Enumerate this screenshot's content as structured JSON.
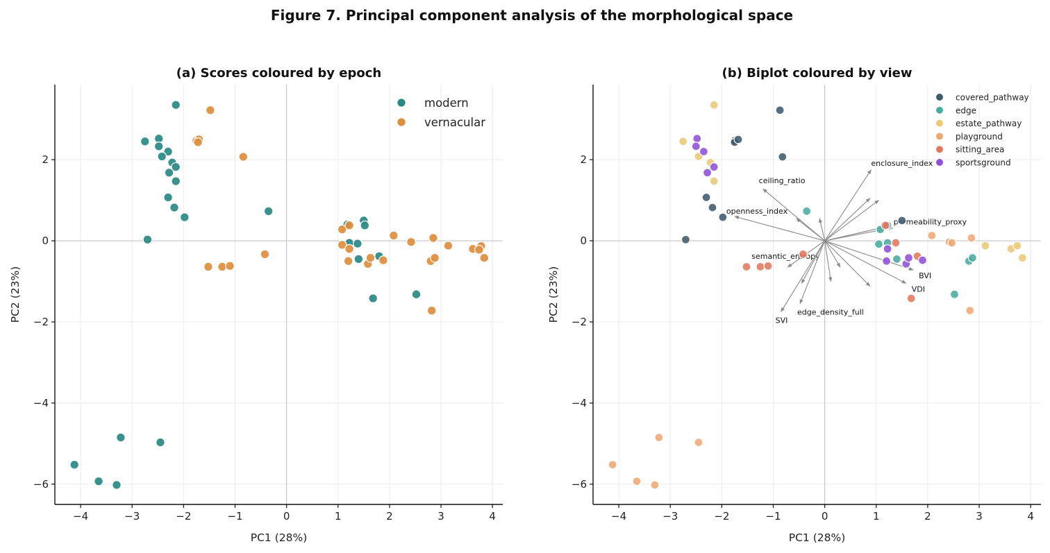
{
  "figure": {
    "title": "Figure 7. Principal component analysis of the morphological space"
  },
  "chart_data": [
    {
      "type": "scatter",
      "title": "(a) Scores coloured by epoch",
      "xlabel": "PC1 (28%)",
      "ylabel": "PC2 (23%)",
      "xlim": [
        -4.5,
        4.2
      ],
      "ylim": [
        -6.5,
        3.85
      ],
      "xticks": [
        -4,
        -3,
        -2,
        -1,
        0,
        1,
        2,
        3,
        4
      ],
      "yticks": [
        -6,
        -4,
        -2,
        0,
        2
      ],
      "grid": true,
      "legend": "top-right",
      "series": [
        {
          "name": "modern",
          "color": "#2a8a84",
          "points": [
            [
              -2.15,
              3.35
            ],
            [
              -2.75,
              2.45
            ],
            [
              -2.48,
              2.52
            ],
            [
              -2.48,
              2.33
            ],
            [
              -2.3,
              2.2
            ],
            [
              -2.42,
              2.08
            ],
            [
              -2.22,
              1.93
            ],
            [
              -2.15,
              1.82
            ],
            [
              -2.28,
              1.68
            ],
            [
              -2.15,
              1.47
            ],
            [
              -2.3,
              1.07
            ],
            [
              -2.18,
              0.82
            ],
            [
              -1.98,
              0.58
            ],
            [
              -2.7,
              0.03
            ],
            [
              -0.35,
              0.73
            ],
            [
              -4.12,
              -5.52
            ],
            [
              -3.65,
              -5.93
            ],
            [
              -3.3,
              -6.02
            ],
            [
              -3.22,
              -4.85
            ],
            [
              -2.45,
              -4.97
            ],
            [
              1.18,
              0.4
            ],
            [
              1.5,
              0.5
            ],
            [
              1.52,
              0.38
            ],
            [
              1.22,
              -0.05
            ],
            [
              1.38,
              -0.07
            ],
            [
              1.4,
              -0.45
            ],
            [
              1.8,
              -0.38
            ],
            [
              1.68,
              -1.42
            ],
            [
              2.52,
              -1.32
            ]
          ]
        },
        {
          "name": "vernacular",
          "color": "#de8f3e",
          "points": [
            [
              -1.48,
              3.22
            ],
            [
              -1.75,
              2.47
            ],
            [
              -1.7,
              2.5
            ],
            [
              -1.72,
              2.43
            ],
            [
              -0.84,
              2.07
            ],
            [
              -0.42,
              -0.33
            ],
            [
              -1.52,
              -0.64
            ],
            [
              -1.25,
              -0.64
            ],
            [
              -1.1,
              -0.62
            ],
            [
              1.08,
              0.28
            ],
            [
              1.22,
              0.38
            ],
            [
              1.08,
              -0.1
            ],
            [
              1.22,
              -0.2
            ],
            [
              1.2,
              -0.5
            ],
            [
              1.58,
              -0.57
            ],
            [
              1.63,
              -0.42
            ],
            [
              1.88,
              -0.48
            ],
            [
              2.08,
              0.13
            ],
            [
              2.42,
              -0.03
            ],
            [
              2.85,
              0.07
            ],
            [
              3.14,
              -0.12
            ],
            [
              2.8,
              -0.5
            ],
            [
              2.88,
              -0.42
            ],
            [
              2.82,
              -1.72
            ],
            [
              3.62,
              -0.2
            ],
            [
              3.78,
              -0.13
            ],
            [
              3.74,
              -0.22
            ],
            [
              3.84,
              -0.42
            ]
          ]
        }
      ]
    },
    {
      "type": "scatter",
      "title": "(b) Biplot coloured by view",
      "xlabel": "PC1 (28%)",
      "ylabel": "PC2 (23%)",
      "xlim": [
        -4.5,
        4.2
      ],
      "ylim": [
        -6.5,
        3.85
      ],
      "xticks": [
        -4,
        -3,
        -2,
        -1,
        0,
        1,
        2,
        3,
        4
      ],
      "yticks": [
        -6,
        -4,
        -2,
        0,
        2
      ],
      "grid": true,
      "legend": "top-right",
      "series": [
        {
          "name": "covered_pathway",
          "color": "#3f5a6b",
          "points": [
            [
              -0.87,
              3.22
            ],
            [
              -1.75,
              2.47
            ],
            [
              -1.75,
              2.43
            ],
            [
              -1.68,
              2.5
            ],
            [
              -0.82,
              2.07
            ],
            [
              -2.3,
              1.07
            ],
            [
              -2.18,
              0.82
            ],
            [
              -1.98,
              0.58
            ],
            [
              -2.7,
              0.03
            ],
            [
              1.5,
              0.5
            ]
          ]
        },
        {
          "name": "edge",
          "color": "#4aab9e",
          "points": [
            [
              -0.35,
              0.73
            ],
            [
              1.22,
              0.38
            ],
            [
              1.08,
              0.28
            ],
            [
              1.22,
              -0.05
            ],
            [
              1.05,
              -0.08
            ],
            [
              1.4,
              -0.45
            ],
            [
              2.8,
              -0.5
            ],
            [
              2.87,
              -0.42
            ],
            [
              2.52,
              -1.32
            ]
          ]
        },
        {
          "name": "estate_pathway",
          "color": "#ecc878",
          "points": [
            [
              -2.15,
              3.35
            ],
            [
              -2.75,
              2.45
            ],
            [
              -2.45,
              2.08
            ],
            [
              -2.22,
              1.93
            ],
            [
              -2.15,
              1.47
            ],
            [
              3.12,
              -0.12
            ],
            [
              3.62,
              -0.2
            ],
            [
              3.74,
              -0.12
            ],
            [
              3.84,
              -0.42
            ]
          ]
        },
        {
          "name": "playground",
          "color": "#efa874",
          "points": [
            [
              -4.12,
              -5.52
            ],
            [
              -3.65,
              -5.93
            ],
            [
              -3.3,
              -6.02
            ],
            [
              -3.22,
              -4.85
            ],
            [
              -2.45,
              -4.97
            ],
            [
              2.08,
              0.13
            ],
            [
              2.42,
              -0.03
            ],
            [
              2.47,
              -0.05
            ],
            [
              2.85,
              0.07
            ],
            [
              2.82,
              -1.72
            ]
          ]
        },
        {
          "name": "sitting_area",
          "color": "#e2775f",
          "points": [
            [
              -1.52,
              -0.64
            ],
            [
              -1.25,
              -0.64
            ],
            [
              -1.1,
              -0.62
            ],
            [
              -0.42,
              -0.33
            ],
            [
              1.18,
              0.38
            ],
            [
              1.38,
              -0.05
            ],
            [
              1.8,
              -0.38
            ],
            [
              1.68,
              -1.42
            ]
          ]
        },
        {
          "name": "sportsground",
          "color": "#8e4fd8",
          "points": [
            [
              -2.48,
              2.52
            ],
            [
              -2.5,
              2.33
            ],
            [
              -2.35,
              2.2
            ],
            [
              -2.15,
              1.82
            ],
            [
              -2.28,
              1.68
            ],
            [
              1.2,
              -0.5
            ],
            [
              1.22,
              -0.2
            ],
            [
              1.58,
              -0.57
            ],
            [
              1.63,
              -0.42
            ],
            [
              1.9,
              -0.48
            ]
          ]
        }
      ],
      "vectors": [
        {
          "label": "enclosure_index",
          "x": 0.9,
          "y": 1.75
        },
        {
          "label": "ceiling_ratio",
          "x": -1.2,
          "y": 1.28
        },
        {
          "label": "openness_index",
          "x": -1.75,
          "y": 0.6
        },
        {
          "label": "permeability_proxy",
          "x": 1.2,
          "y": 0.35
        },
        {
          "label": "semantic_entropy",
          "x": -0.72,
          "y": -0.65
        },
        {
          "label": "BVI",
          "x": 1.72,
          "y": -0.72
        },
        {
          "label": "VDI",
          "x": 1.58,
          "y": -1.05
        },
        {
          "label": "edge_density_full",
          "x": -0.48,
          "y": -1.55
        },
        {
          "label": "SVI",
          "x": -0.85,
          "y": -1.75
        },
        {
          "label": "",
          "x": 0.88,
          "y": 1.05
        },
        {
          "label": "",
          "x": 1.05,
          "y": 1.0
        },
        {
          "label": "",
          "x": -0.55,
          "y": 0.55
        },
        {
          "label": "",
          "x": -0.1,
          "y": 0.55
        },
        {
          "label": "",
          "x": 1.32,
          "y": 0.32
        },
        {
          "label": "",
          "x": -0.45,
          "y": -1.05
        },
        {
          "label": "",
          "x": 0.12,
          "y": -1.0
        },
        {
          "label": "",
          "x": 0.3,
          "y": -0.65
        },
        {
          "label": "",
          "x": 0.88,
          "y": -1.12
        }
      ]
    }
  ]
}
